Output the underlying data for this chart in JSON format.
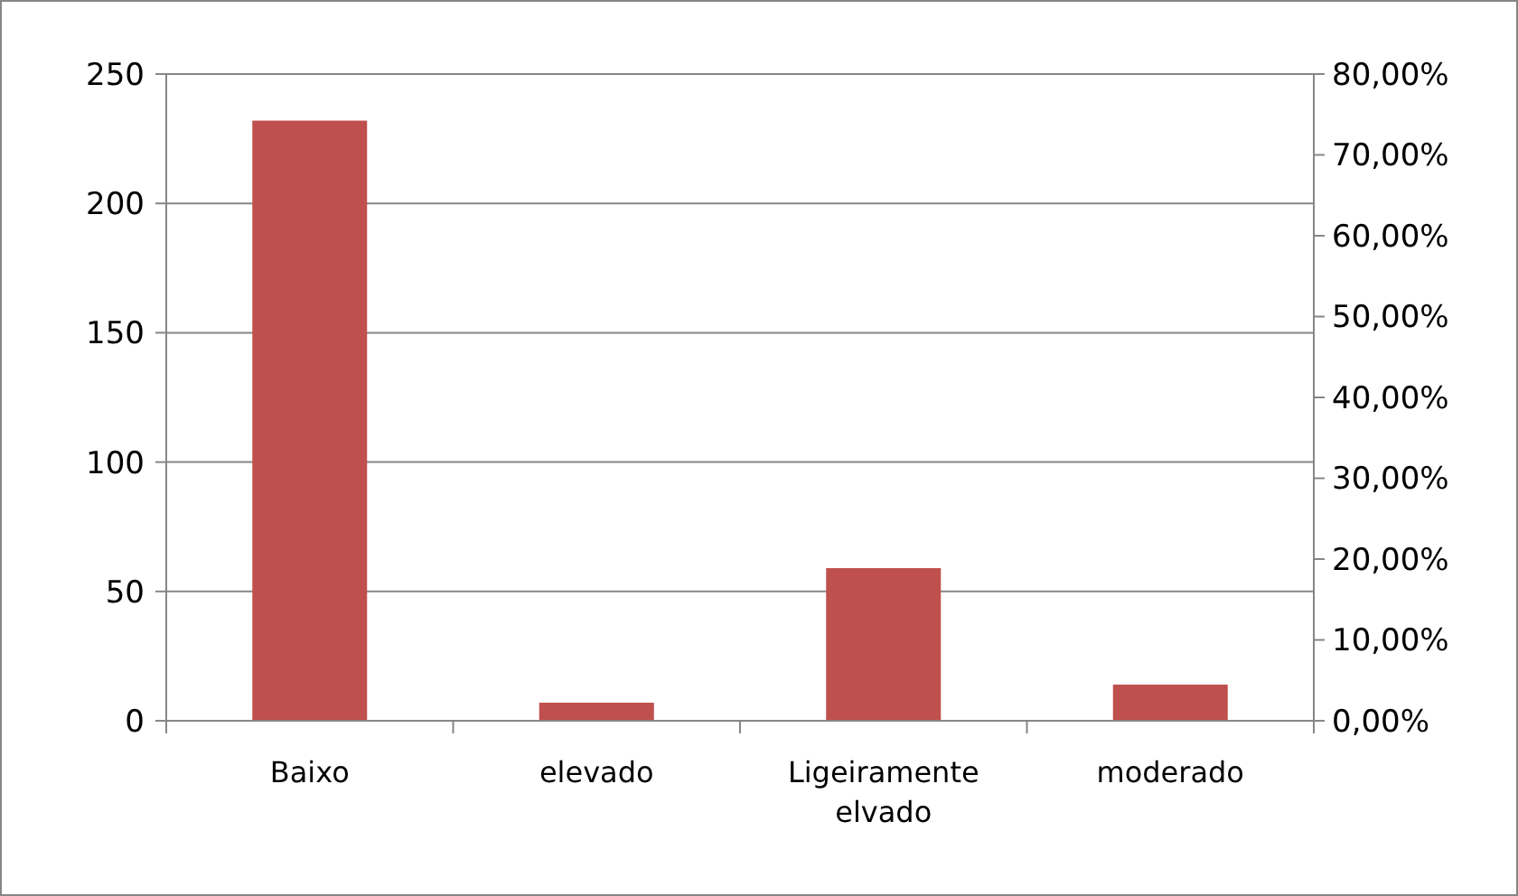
{
  "chart_data": {
    "type": "bar",
    "categories": [
      "Baixo",
      "elevado",
      "Ligeiramente elvado",
      "moderado"
    ],
    "values": [
      232,
      7,
      59,
      14
    ],
    "color": "#c0504d",
    "ylim": [
      0,
      250
    ],
    "yticks": [
      0,
      50,
      100,
      150,
      200,
      250
    ],
    "y2lim": [
      0,
      80
    ],
    "y2ticks": [
      {
        "value": 0,
        "label": "0,00%"
      },
      {
        "value": 10,
        "label": "10,00%"
      },
      {
        "value": 20,
        "label": "20,00%"
      },
      {
        "value": 30,
        "label": "30,00%"
      },
      {
        "value": 40,
        "label": "40,00%"
      },
      {
        "value": 50,
        "label": "50,00%"
      },
      {
        "value": 60,
        "label": "60,00%"
      },
      {
        "value": 70,
        "label": "70,00%"
      },
      {
        "value": 80,
        "label": "80,00%"
      }
    ],
    "grid": "y"
  }
}
